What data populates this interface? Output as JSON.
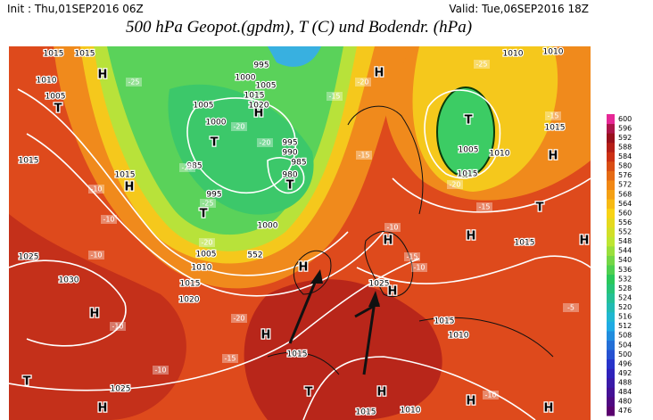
{
  "header": {
    "init": "Init : Thu,01SEP2016 06Z",
    "valid": "Valid: Tue,06SEP2016 18Z",
    "title": "500 hPa Geopot.(gpdm), T (C) und Bodendr. (hPa)"
  },
  "labels": [
    "1015",
    "1015",
    "1010",
    "1005",
    "T",
    "H",
    "995",
    "1000",
    "1005",
    "H",
    "1015",
    "1020",
    "1005",
    "1000",
    "T",
    "995",
    "990",
    "985",
    "980",
    "T",
    "985",
    "995",
    "T",
    "1000",
    "1005",
    "1010",
    "552",
    "1015",
    "1020",
    "1015",
    "1015",
    "H",
    "1025",
    "1030",
    "H",
    "H",
    "1025",
    "H",
    "1015",
    "1010",
    "H",
    "1015",
    "T",
    "1025",
    "T",
    "H",
    "H",
    "1015",
    "1010",
    "T",
    "1005",
    "1010",
    "1015",
    "1015",
    "H",
    "H",
    "1015",
    "T",
    "H",
    "H",
    "H",
    "H",
    "1010",
    "1010",
    "H"
  ],
  "temps": [
    "-25",
    "-20",
    "-25",
    "-25",
    "-20",
    "-15",
    "-20",
    "-25",
    "-15",
    "-15",
    "-20",
    "-15",
    "-10",
    "-10",
    "-10",
    "-10",
    "-10",
    "-15",
    "-20",
    "-10",
    "-10",
    "-10",
    "-5",
    "-15",
    "-20"
  ],
  "colorbar": {
    "levels": [
      476,
      480,
      484,
      488,
      492,
      496,
      500,
      504,
      508,
      512,
      516,
      520,
      524,
      528,
      532,
      536,
      540,
      544,
      548,
      552,
      556,
      560,
      564,
      568,
      572,
      576,
      580,
      584,
      588,
      592,
      596,
      600
    ]
  }
}
